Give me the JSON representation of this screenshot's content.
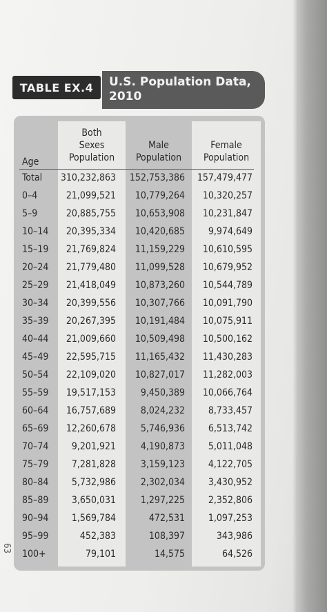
{
  "table_label": "TABLE EX.4",
  "table_title": "U.S. Population Data,\n2010",
  "headers": {
    "age": "Age",
    "both": "Both\nSexes\nPopulation",
    "male": "Male\nPopulation",
    "female": "Female\nPopulation"
  },
  "rows": [
    {
      "age": "Total",
      "both": "310,232,863",
      "male": "152,753,386",
      "female": "157,479,477"
    },
    {
      "age": "0–4",
      "both": "21,099,521",
      "male": "10,779,264",
      "female": "10,320,257"
    },
    {
      "age": "5–9",
      "both": "20,885,755",
      "male": "10,653,908",
      "female": "10,231,847"
    },
    {
      "age": "10–14",
      "both": "20,395,334",
      "male": "10,420,685",
      "female": "9,974,649"
    },
    {
      "age": "15–19",
      "both": "21,769,824",
      "male": "11,159,229",
      "female": "10,610,595"
    },
    {
      "age": "20–24",
      "both": "21,779,480",
      "male": "11,099,528",
      "female": "10,679,952"
    },
    {
      "age": "25–29",
      "both": "21,418,049",
      "male": "10,873,260",
      "female": "10,544,789"
    },
    {
      "age": "30–34",
      "both": "20,399,556",
      "male": "10,307,766",
      "female": "10,091,790"
    },
    {
      "age": "35–39",
      "both": "20,267,395",
      "male": "10,191,484",
      "female": "10,075,911"
    },
    {
      "age": "40–44",
      "both": "21,009,660",
      "male": "10,509,498",
      "female": "10,500,162"
    },
    {
      "age": "45–49",
      "both": "22,595,715",
      "male": "11,165,432",
      "female": "11,430,283"
    },
    {
      "age": "50–54",
      "both": "22,109,020",
      "male": "10,827,017",
      "female": "11,282,003"
    },
    {
      "age": "55–59",
      "both": "19,517,153",
      "male": "9,450,389",
      "female": "10,066,764"
    },
    {
      "age": "60–64",
      "both": "16,757,689",
      "male": "8,024,232",
      "female": "8,733,457"
    },
    {
      "age": "65–69",
      "both": "12,260,678",
      "male": "5,746,936",
      "female": "6,513,742"
    },
    {
      "age": "70–74",
      "both": "9,201,921",
      "male": "4,190,873",
      "female": "5,011,048"
    },
    {
      "age": "75–79",
      "both": "7,281,828",
      "male": "3,159,123",
      "female": "4,122,705"
    },
    {
      "age": "80–84",
      "both": "5,732,986",
      "male": "2,302,034",
      "female": "3,430,952"
    },
    {
      "age": "85–89",
      "both": "3,650,031",
      "male": "1,297,225",
      "female": "2,352,806"
    },
    {
      "age": "90–94",
      "both": "1,569,784",
      "male": "472,531",
      "female": "1,097,253"
    },
    {
      "age": "95–99",
      "both": "452,383",
      "male": "108,397",
      "female": "343,986"
    },
    {
      "age": "100+",
      "both": "79,101",
      "male": "14,575",
      "female": "64,526"
    }
  ],
  "margin_mark": "63"
}
